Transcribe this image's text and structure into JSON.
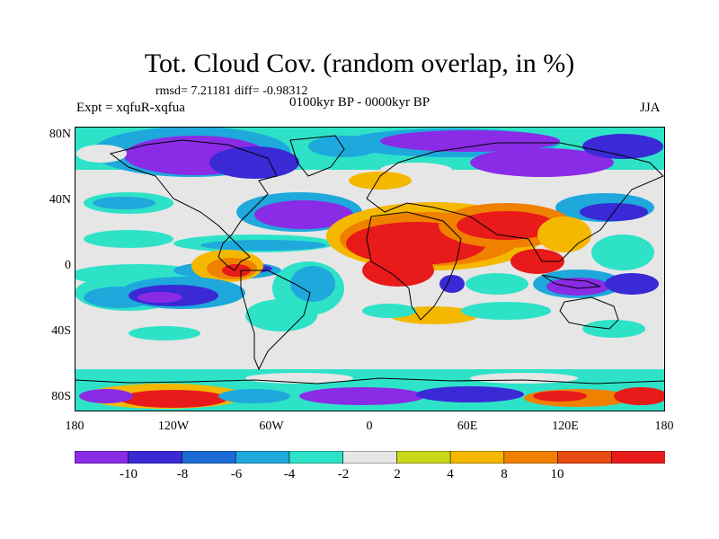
{
  "title": "Tot. Cloud Cov. (random overlap, in %)",
  "stats_line": "rmsd= 7.21181 diff= -0.98312",
  "period": "0100kyr BP - 0000kyr BP",
  "experiment": "Expt = xqfuR-xqfua",
  "season": "JJA",
  "lat_labels": [
    "80N",
    "40N",
    "0",
    "40S",
    "80S"
  ],
  "lon_labels": [
    "180",
    "120W",
    "60W",
    "0",
    "60E",
    "120E",
    "180"
  ],
  "colorbar": {
    "labels": [
      "-10",
      "-8",
      "-6",
      "-4",
      "-2",
      "2",
      "4",
      "8",
      "10"
    ],
    "colors": [
      "#8a2be6",
      "#3a2ad6",
      "#1c6bd6",
      "#1ea8dc",
      "#2ee2c8",
      "#e6e6e6",
      "#c8d81a",
      "#f5b800",
      "#f08000",
      "#e84c12",
      "#e81a1a"
    ]
  },
  "colors": {
    "ocean_neutral": "#e6e6e6",
    "coastline": "#000000"
  }
}
